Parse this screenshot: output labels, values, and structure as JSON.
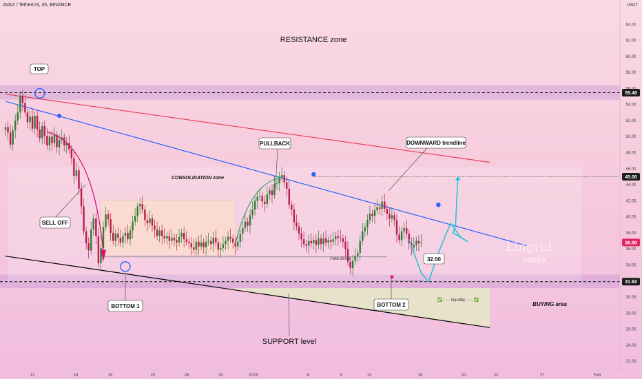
{
  "header": {
    "symbol_line": "AVAX / TetherUS, 4h, BINANCE",
    "currency": "USDT"
  },
  "colors": {
    "resistance_trendline": "#e8394f",
    "downward_trendline": "#2962ff",
    "support_trendline": "#000000",
    "candle_up": "#2e7d32",
    "candle_down": "#b71c4a",
    "projection": "#29c4d8",
    "sell_arrow": "#d0176f",
    "pullback_arrow": "#3aa36b"
  },
  "labels": {
    "resistance_zone": "RESISTANCE zone",
    "support_level": "SUPPORT level",
    "consolidation_zone": "CONSOLIDATION zone",
    "top": "TOP",
    "sell_off": "SELL OFF",
    "bottom1": "BOTTOM 1",
    "bottom2": "BOTTOM 2",
    "pullback": "PULLBACK",
    "downward_trendline": "DOWNWARD trendline",
    "fake_break": "Fake Break",
    "liquidity": "✅ - - - liquidity - - - ✅",
    "buying_area": "BUYING area",
    "price_32": "32.00",
    "watermark_1": "Lingrid",
    "watermark_2": "FOREX"
  },
  "chart_data": {
    "type": "candlestick",
    "x_tick_labels": [
      "12",
      "16",
      "19",
      "23",
      "26",
      "29",
      "2025",
      "6",
      "9",
      "13",
      "16",
      "20",
      "23",
      "27",
      "Feb"
    ],
    "y_ticks": [
      22.0,
      24.0,
      26.0,
      28.0,
      30.0,
      32.0,
      34.0,
      36.0,
      38.0,
      40.0,
      42.0,
      44.0,
      46.0,
      48.0,
      50.0,
      52.0,
      54.0,
      56.0,
      58.0,
      60.0,
      62.0,
      64.0
    ],
    "ylim": [
      21.5,
      66
    ],
    "price_badges": [
      {
        "value": "55.48",
        "bg": "#1c1c1c"
      },
      {
        "value": "45.00",
        "bg": "#1c1c1c"
      },
      {
        "value": "36.80",
        "bg": "#e0245e"
      },
      {
        "value": "31.92",
        "bg": "#1c1c1c"
      }
    ],
    "levels": {
      "resistance": 55.48,
      "target": 45.0,
      "support": 31.92,
      "current": 36.8,
      "price_marker": 32.0,
      "resistance_zone": [
        54.6,
        56.4
      ],
      "support_zone": [
        31.1,
        32.8
      ]
    },
    "trendlines": {
      "resistance": {
        "from": {
          "i": 0,
          "p": 55.3
        },
        "to": {
          "i": 198,
          "p": 46.8
        }
      },
      "downward": {
        "from": {
          "i": 0,
          "p": 54.4
        },
        "to": {
          "i": 213,
          "p": 36.4
        }
      },
      "support": {
        "from": {
          "i": 0,
          "p": 35.1
        },
        "to": {
          "i": 198,
          "p": 26.2
        }
      }
    },
    "consolidation_range": {
      "i0": 39,
      "i1": 94,
      "p_low": 35.2,
      "p_high": 42.1
    },
    "projection": [
      {
        "i": 165,
        "p": 37.2
      },
      {
        "i": 170,
        "p": 33.0
      },
      {
        "i": 173,
        "p": 31.9
      },
      {
        "i": 177,
        "p": 35.5
      },
      {
        "i": 182,
        "p": 39.2
      },
      {
        "i": 186,
        "p": 37.5
      },
      {
        "i": 189,
        "p": 36.9
      },
      {
        "i": 183,
        "p": 38.0
      },
      {
        "i": 184,
        "p": 38.8
      },
      {
        "i": 185,
        "p": 45.0
      }
    ],
    "series": [
      {
        "name": "AVAX/USDT",
        "close": [
          51.2,
          50.5,
          49.0,
          50.8,
          52.0,
          53.0,
          55.1,
          54.2,
          53.0,
          51.8,
          52.5,
          51.0,
          52.6,
          50.9,
          49.8,
          51.3,
          50.1,
          48.9,
          50.0,
          49.2,
          50.2,
          48.7,
          49.6,
          49.9,
          48.9,
          49.2,
          48.4,
          47.3,
          45.1,
          45.8,
          43.5,
          41.3,
          38.2,
          36.7,
          35.8,
          38.4,
          39.8,
          37.6,
          34.2,
          36.1,
          38.7,
          40.3,
          39.7,
          38.0,
          37.0,
          37.9,
          37.4,
          36.8,
          37.6,
          38.0,
          37.2,
          38.3,
          39.4,
          40.1,
          41.3,
          41.6,
          40.9,
          39.6,
          39.2,
          39.8,
          38.9,
          38.4,
          37.6,
          38.3,
          37.6,
          37.3,
          37.6,
          37.0,
          37.4,
          37.1,
          36.8,
          37.5,
          38.0,
          37.2,
          36.9,
          36.7,
          36.2,
          35.9,
          36.9,
          36.3,
          36.8,
          36.2,
          36.9,
          37.0,
          36.6,
          37.4,
          36.8,
          35.9,
          36.1,
          36.6,
          37.0,
          37.5,
          37.3,
          36.8,
          36.3,
          36.9,
          37.9,
          38.6,
          39.4,
          38.9,
          40.2,
          40.9,
          42.0,
          42.5,
          42.6,
          41.9,
          41.6,
          42.8,
          43.3,
          42.7,
          44.1,
          44.2,
          44.9,
          45.2,
          44.3,
          43.5,
          41.5,
          40.9,
          39.3,
          38.8,
          37.9,
          37.2,
          36.6,
          36.4,
          37.0,
          36.7,
          37.1,
          36.5,
          37.3,
          36.6,
          37.3,
          36.8,
          37.1,
          36.9,
          37.2,
          37.6,
          37.4,
          37.3,
          36.9,
          36.0,
          34.4,
          33.6,
          34.5,
          35.1,
          35.5,
          37.0,
          38.2,
          38.7,
          39.6,
          40.4,
          40.1,
          40.8,
          41.2,
          41.0,
          41.9,
          41.0,
          40.4,
          39.8,
          40.2,
          39.6,
          37.8,
          37.1,
          38.2,
          38.6,
          37.9,
          36.7,
          36.2,
          36.5,
          37.0,
          36.7,
          36.8
        ]
      }
    ]
  }
}
